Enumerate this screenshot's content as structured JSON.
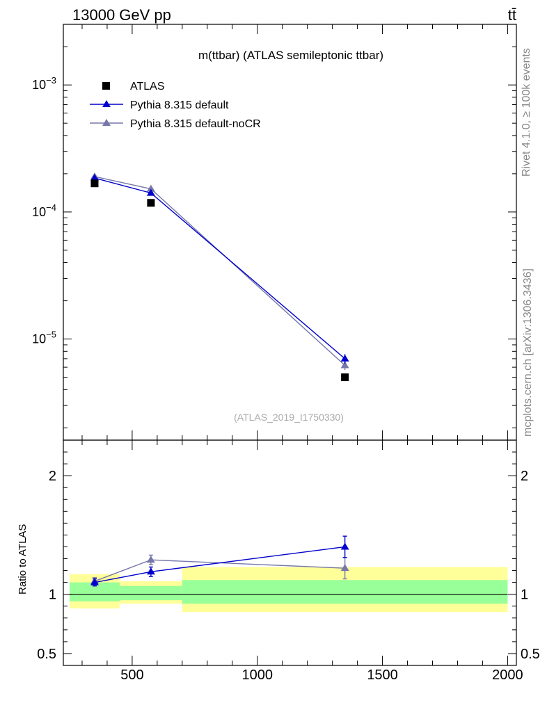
{
  "header": {
    "energy_label": "13000 GeV pp",
    "process_label": "tt̄"
  },
  "side_labels": {
    "rivet": "Rivet 4.1.0, ≥ 100k events",
    "mcplots": "mcplots.cern.ch [arXiv:1306.3436]"
  },
  "chart_data": [
    {
      "type": "line",
      "title": "m(ttbar) (ATLAS semileptonic ttbar)",
      "analysis_tag": "(ATLAS_2019_I1750330)",
      "yscale": "log",
      "ylim": [
        1.6e-06,
        0.003
      ],
      "xlim": [
        225,
        2035
      ],
      "ytick_labels": [
        "10^-5",
        "10^-4",
        "10^-3"
      ],
      "series": [
        {
          "name": "ATLAS",
          "marker": "square",
          "color": "#000000",
          "x": [
            350,
            575,
            1350
          ],
          "y": [
            0.000168,
            0.000118,
            5e-06
          ],
          "yerr": [
            0,
            0,
            0
          ]
        },
        {
          "name": "Pythia 8.315 default",
          "marker": "triangle",
          "color": "#0000cc",
          "x": [
            350,
            575,
            1350
          ],
          "y": [
            0.000185,
            0.000141,
            7e-06
          ],
          "yerr": [
            3e-06,
            3e-06,
            6e-07
          ]
        },
        {
          "name": "Pythia 8.315 default-noCR",
          "marker": "triangle",
          "color": "#7777aa",
          "x": [
            350,
            575,
            1350
          ],
          "y": [
            0.00019,
            0.000152,
            6.2e-06
          ],
          "yerr": [
            3e-06,
            3e-06,
            5e-07
          ]
        }
      ]
    },
    {
      "type": "line",
      "ylabel": "Ratio to ATLAS",
      "ylim": [
        0.4,
        2.3
      ],
      "xlim": [
        225,
        2035
      ],
      "xticks": [
        500,
        1000,
        1500,
        2000
      ],
      "yticks": [
        0.5,
        1,
        2
      ],
      "ytick_labels": [
        "0.5",
        "1",
        "2"
      ],
      "reference_line": 1,
      "bands": [
        {
          "x0": 250,
          "x1": 450,
          "inner": [
            0.94,
            1.1
          ],
          "outer": [
            0.88,
            1.17
          ]
        },
        {
          "x0": 450,
          "x1": 700,
          "inner": [
            0.95,
            1.07
          ],
          "outer": [
            0.92,
            1.11
          ]
        },
        {
          "x0": 700,
          "x1": 2000,
          "inner": [
            0.92,
            1.12
          ],
          "outer": [
            0.85,
            1.23
          ]
        }
      ],
      "series": [
        {
          "name": "Pythia 8.315 default",
          "color": "#0000cc",
          "x": [
            350,
            575,
            1350
          ],
          "y": [
            1.1,
            1.19,
            1.4
          ],
          "yerr": [
            0.03,
            0.04,
            0.09
          ]
        },
        {
          "name": "Pythia 8.315 default-noCR",
          "color": "#7777aa",
          "x": [
            350,
            575,
            1350
          ],
          "y": [
            1.11,
            1.29,
            1.22
          ],
          "yerr": [
            0.03,
            0.04,
            0.09
          ]
        }
      ]
    }
  ]
}
